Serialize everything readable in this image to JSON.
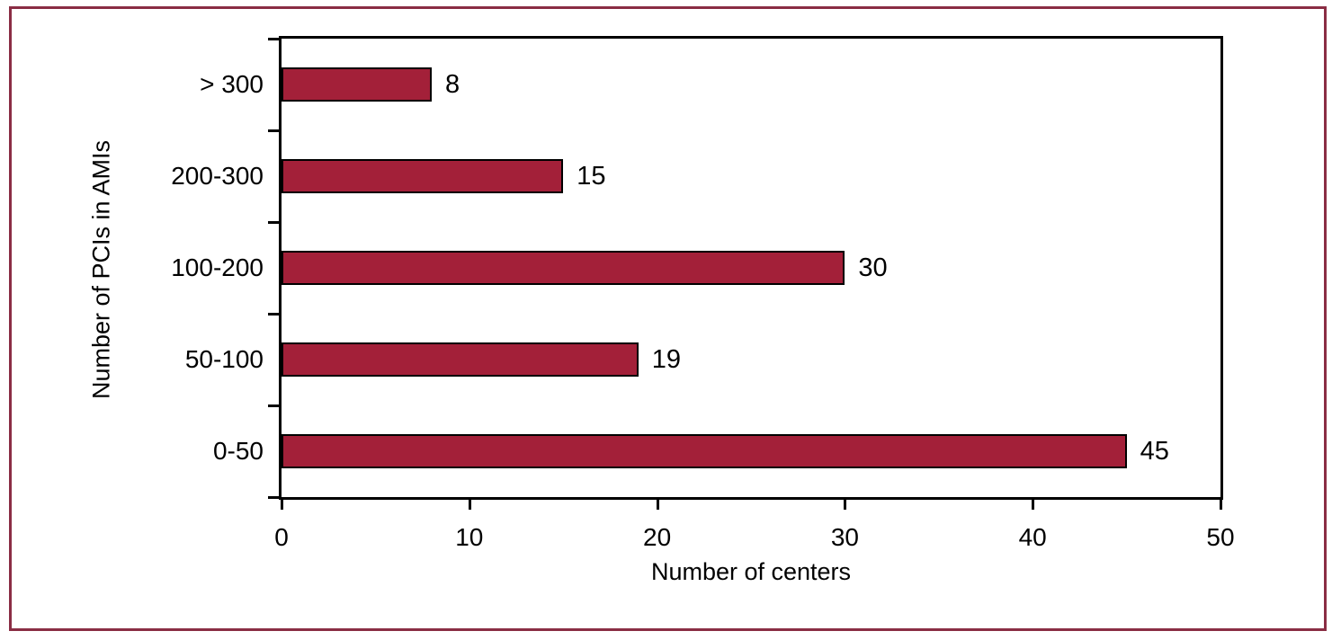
{
  "figure": {
    "background": "#ffffff",
    "frame_color": "#8a2d44"
  },
  "chart_data": {
    "type": "bar",
    "orientation": "horizontal",
    "title": "",
    "categories": [
      "> 300",
      "200-300",
      "100-200",
      "50-100",
      "0-50"
    ],
    "values": [
      8,
      15,
      30,
      19,
      45
    ],
    "value_labels": [
      "8",
      "15",
      "30",
      "19",
      "45"
    ],
    "xlabel": "Number of centers",
    "ylabel": "Number of PCIs in AMIs",
    "xlim": [
      0,
      50
    ],
    "x_ticks": [
      0,
      10,
      20,
      30,
      40,
      50
    ],
    "bar_color": "#a32039",
    "bar_border_color": "#000000",
    "axis_color": "#000000",
    "grid": false,
    "legend": false
  }
}
